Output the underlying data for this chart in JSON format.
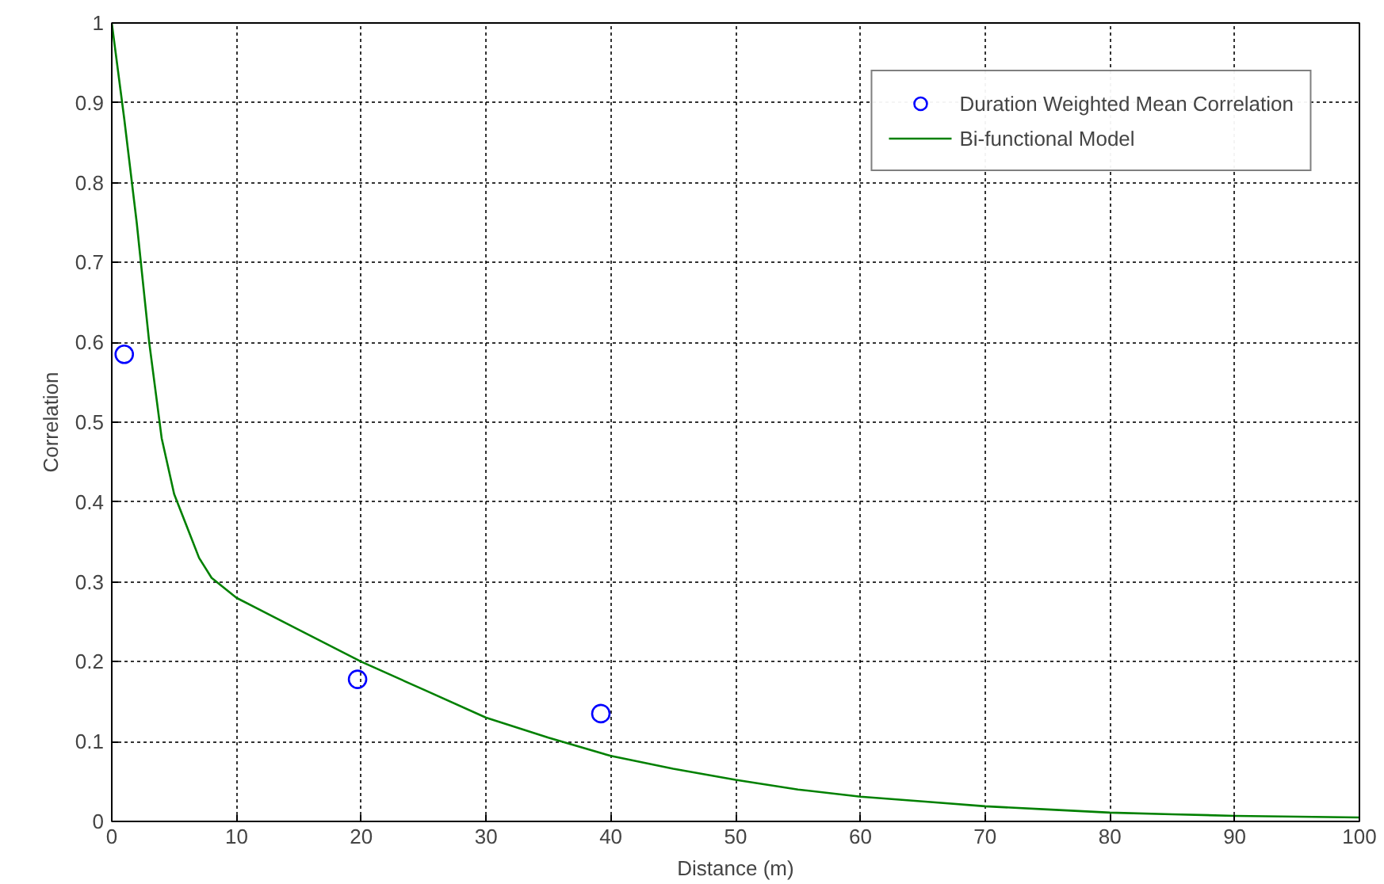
{
  "chart_data": {
    "type": "line",
    "xlabel": "Distance (m)",
    "ylabel": "Correlation",
    "xlim": [
      0,
      100
    ],
    "ylim": [
      0,
      1
    ],
    "xticks": [
      0,
      10,
      20,
      30,
      40,
      50,
      60,
      70,
      80,
      90,
      100
    ],
    "yticks": [
      0,
      0.1,
      0.2,
      0.3,
      0.4,
      0.5,
      0.6,
      0.7,
      0.8,
      0.9,
      1
    ],
    "grid": true,
    "legend": "top right",
    "series": [
      {
        "name": "Duration Weighted Mean Correlation",
        "type": "scatter",
        "marker": "circle",
        "color": "#0000ff",
        "x": [
          1,
          19.7,
          39.2
        ],
        "values": [
          0.585,
          0.178,
          0.135
        ]
      },
      {
        "name": "Bi-functional Model",
        "type": "line",
        "line_style": "solid",
        "color": "#008000",
        "x": [
          0,
          1,
          2,
          3,
          4,
          5,
          6,
          7,
          8,
          10,
          15,
          20,
          25,
          30,
          35,
          40,
          45,
          50,
          55,
          60,
          65,
          70,
          75,
          80,
          85,
          90,
          95,
          100
        ],
        "values": [
          1,
          0.88,
          0.75,
          0.6,
          0.48,
          0.41,
          0.37,
          0.33,
          0.305,
          0.28,
          0.24,
          0.2,
          0.165,
          0.13,
          0.105,
          0.082,
          0.066,
          0.052,
          0.04,
          0.031,
          0.025,
          0.019,
          0.015,
          0.011,
          0.009,
          0.007,
          0.006,
          0.005
        ]
      }
    ]
  }
}
